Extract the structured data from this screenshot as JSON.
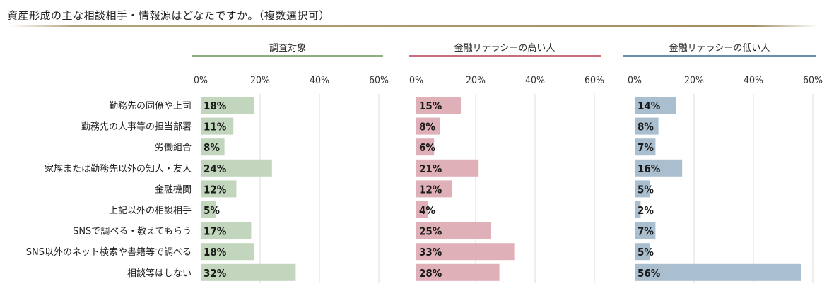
{
  "page": {
    "title": "資産形成の主な相談相手・情報源はどなたですか。（複数選択可）"
  },
  "chart_data": {
    "type": "bar",
    "orientation": "horizontal",
    "title": "資産形成の主な相談相手・情報源はどなたですか。（複数選択可）",
    "categories": [
      "勤務先の同僚や上司",
      "勤務先の人事等の担当部署",
      "労働組合",
      "家族または勤務先以外の知人・友人",
      "金融機関",
      "上記以外の相談相手",
      "SNSで調べる・教えてもらう",
      "SNS以外のネット検索や書籍等で調べる",
      "相談等はしない"
    ],
    "xlim": [
      0,
      60
    ],
    "x_ticks": [
      "0%",
      "20%",
      "40%",
      "60%"
    ],
    "grid": true,
    "series": [
      {
        "name": "調査対象",
        "color": "#c1d6bd",
        "accent": "#8cb082",
        "values": [
          18,
          11,
          8,
          24,
          12,
          5,
          17,
          18,
          32
        ],
        "labels": [
          "18%",
          "11%",
          "8%",
          "24%",
          "12%",
          "5%",
          "17%",
          "18%",
          "32%"
        ]
      },
      {
        "name": "金融リテラシーの高い人",
        "color": "#dfb0b8",
        "accent": "#c7707d",
        "values": [
          15,
          8,
          6,
          21,
          12,
          4,
          25,
          33,
          28
        ],
        "labels": [
          "15%",
          "8%",
          "6%",
          "21%",
          "12%",
          "4%",
          "25%",
          "33%",
          "28%"
        ]
      },
      {
        "name": "金融リテラシーの低い人",
        "color": "#a9bfcf",
        "accent": "#6a8faa",
        "values": [
          14,
          8,
          7,
          16,
          5,
          2,
          7,
          5,
          56
        ],
        "labels": [
          "14%",
          "8%",
          "7%",
          "16%",
          "5%",
          "2%",
          "7%",
          "5%",
          "56%"
        ]
      }
    ]
  }
}
